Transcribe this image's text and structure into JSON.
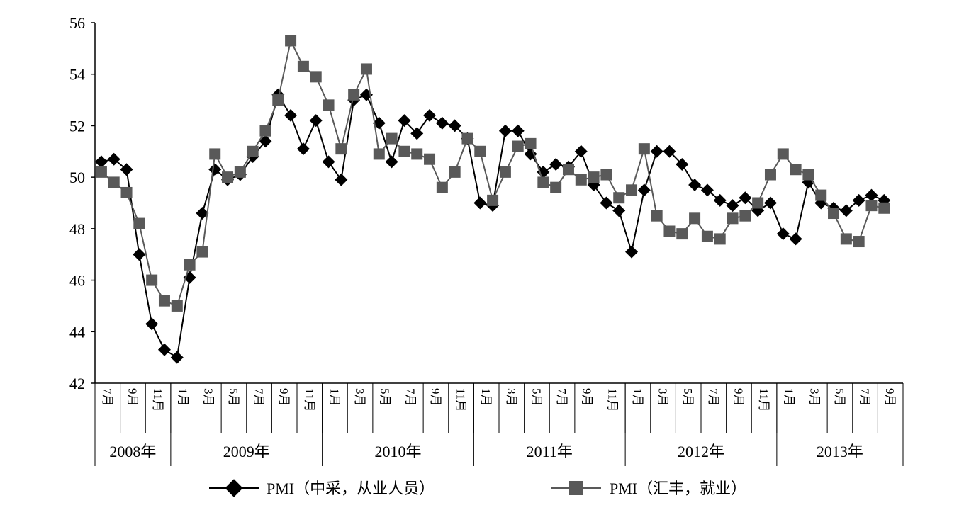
{
  "chart_data": {
    "type": "line",
    "title": "",
    "xlabel": "",
    "ylabel": "",
    "ylim": [
      42,
      56
    ],
    "yticks": [
      42,
      44,
      46,
      48,
      50,
      52,
      54,
      56
    ],
    "grid": false,
    "legend_position": "bottom",
    "x": [
      "2008-07",
      "2008-08",
      "2008-09",
      "2008-10",
      "2008-11",
      "2008-12",
      "2009-01",
      "2009-02",
      "2009-03",
      "2009-04",
      "2009-05",
      "2009-06",
      "2009-07",
      "2009-08",
      "2009-09",
      "2009-10",
      "2009-11",
      "2009-12",
      "2010-01",
      "2010-02",
      "2010-03",
      "2010-04",
      "2010-05",
      "2010-06",
      "2010-07",
      "2010-08",
      "2010-09",
      "2010-10",
      "2010-11",
      "2010-12",
      "2011-01",
      "2011-02",
      "2011-03",
      "2011-04",
      "2011-05",
      "2011-06",
      "2011-07",
      "2011-08",
      "2011-09",
      "2011-10",
      "2011-11",
      "2011-12",
      "2012-01",
      "2012-02",
      "2012-03",
      "2012-04",
      "2012-05",
      "2012-06",
      "2012-07",
      "2012-08",
      "2012-09",
      "2012-10",
      "2012-11",
      "2012-12",
      "2013-01",
      "2013-02",
      "2013-03",
      "2013-04",
      "2013-05",
      "2013-06",
      "2013-07",
      "2013-08",
      "2013-09"
    ],
    "month_tick_labels": [
      "7月",
      "9月",
      "11月",
      "1月",
      "3月",
      "5月",
      "7月",
      "9月",
      "11月",
      "1月",
      "3月",
      "5月",
      "7月",
      "9月",
      "11月",
      "1月",
      "3月",
      "5月",
      "7月",
      "9月",
      "11月",
      "1月",
      "3月",
      "5月",
      "7月",
      "9月",
      "11月",
      "1月",
      "3月",
      "5月",
      "7月",
      "9月"
    ],
    "years": [
      {
        "label": "2008年",
        "months": 6
      },
      {
        "label": "2009年",
        "months": 12
      },
      {
        "label": "2010年",
        "months": 12
      },
      {
        "label": "2011年",
        "months": 12
      },
      {
        "label": "2012年",
        "months": 12
      },
      {
        "label": "2013年",
        "months": 9
      }
    ],
    "series": [
      {
        "name": "PMI（中采，从业人员）",
        "color": "#000000",
        "marker": "diamond",
        "values": [
          50.6,
          50.7,
          50.3,
          47.0,
          44.3,
          43.3,
          43.0,
          46.1,
          48.6,
          50.3,
          49.9,
          50.1,
          50.8,
          51.4,
          53.2,
          52.4,
          51.1,
          52.2,
          50.6,
          49.9,
          53.0,
          53.2,
          52.1,
          50.6,
          52.2,
          51.7,
          52.4,
          52.1,
          52.0,
          51.5,
          49.0,
          48.9,
          51.8,
          51.8,
          50.9,
          50.2,
          50.5,
          50.4,
          51.0,
          49.7,
          49.0,
          48.7,
          47.1,
          49.5,
          51.0,
          51.0,
          50.5,
          49.7,
          49.5,
          49.1,
          48.9,
          49.2,
          48.7,
          49.0,
          47.8,
          47.6,
          49.8,
          49.0,
          48.8,
          48.7,
          49.1,
          49.3,
          49.1
        ]
      },
      {
        "name": "PMI（汇丰，就业）",
        "color": "#595959",
        "marker": "square",
        "values": [
          50.2,
          49.8,
          49.4,
          48.2,
          46.0,
          45.2,
          45.0,
          46.6,
          47.1,
          50.9,
          50.0,
          50.2,
          51.0,
          51.8,
          53.0,
          55.3,
          54.3,
          53.9,
          52.8,
          51.1,
          53.2,
          54.2,
          50.9,
          51.5,
          51.0,
          50.9,
          50.7,
          49.6,
          50.2,
          51.5,
          51.0,
          49.1,
          50.2,
          51.2,
          51.3,
          49.8,
          49.6,
          50.3,
          49.9,
          50.0,
          50.1,
          49.2,
          49.5,
          51.1,
          48.5,
          47.9,
          47.8,
          48.4,
          47.7,
          47.6,
          48.4,
          48.5,
          49.0,
          50.1,
          50.9,
          50.3,
          50.1,
          49.3,
          48.6,
          47.6,
          47.5,
          48.9,
          48.8
        ]
      }
    ]
  }
}
